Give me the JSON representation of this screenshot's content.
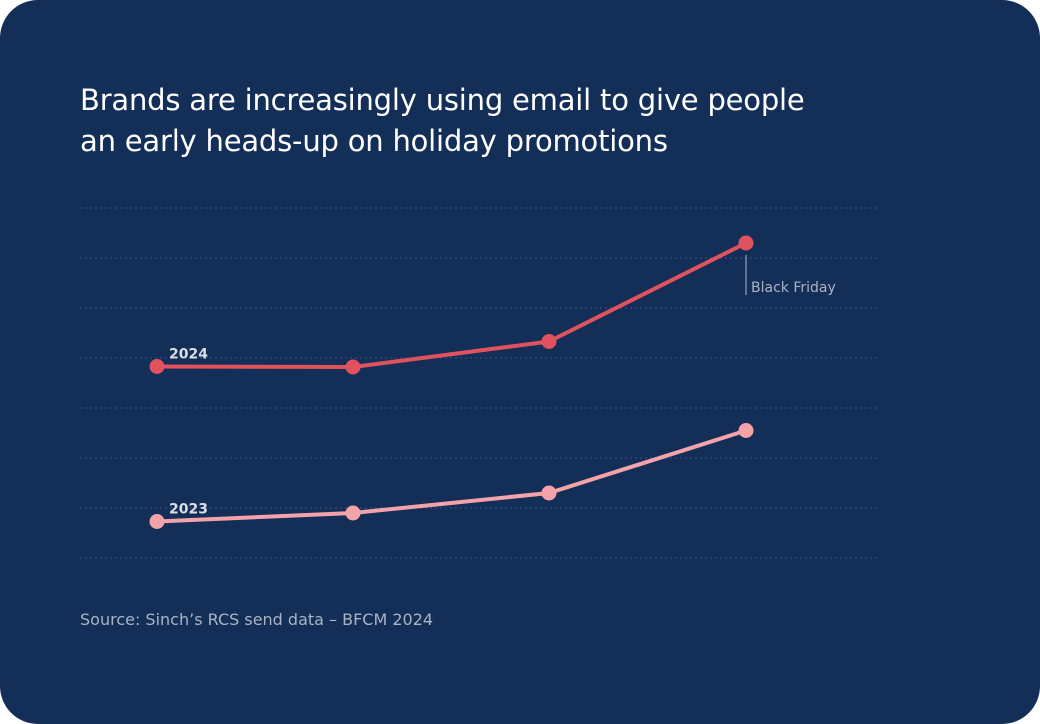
{
  "title_lines": [
    "Brands are increasingly using email to give people",
    "an early heads-up on holiday promotions"
  ],
  "source": "Source: Sinch’s RCS send data – BFCM 2024",
  "colors": {
    "background": "#132e57",
    "grid": "#3b5683",
    "series_2024": "#e0525d",
    "series_2023": "#f5a3aa",
    "annotation": "#a9b4c6"
  },
  "chart_data": {
    "type": "line",
    "title": "Brands are increasingly using email to give people an early heads-up on holiday promotions",
    "xlabel": "",
    "ylabel": "",
    "x": [
      1,
      2,
      3,
      4
    ],
    "ylim": [
      0,
      7
    ],
    "grid": true,
    "series": [
      {
        "name": "2024",
        "label": "2024",
        "values": [
          3.83,
          3.82,
          4.33,
          6.3
        ]
      },
      {
        "name": "2023",
        "label": "2023",
        "values": [
          0.73,
          0.9,
          1.3,
          2.55
        ]
      }
    ],
    "annotations": [
      {
        "text": "Black Friday",
        "series": 0,
        "index": 3
      }
    ]
  }
}
